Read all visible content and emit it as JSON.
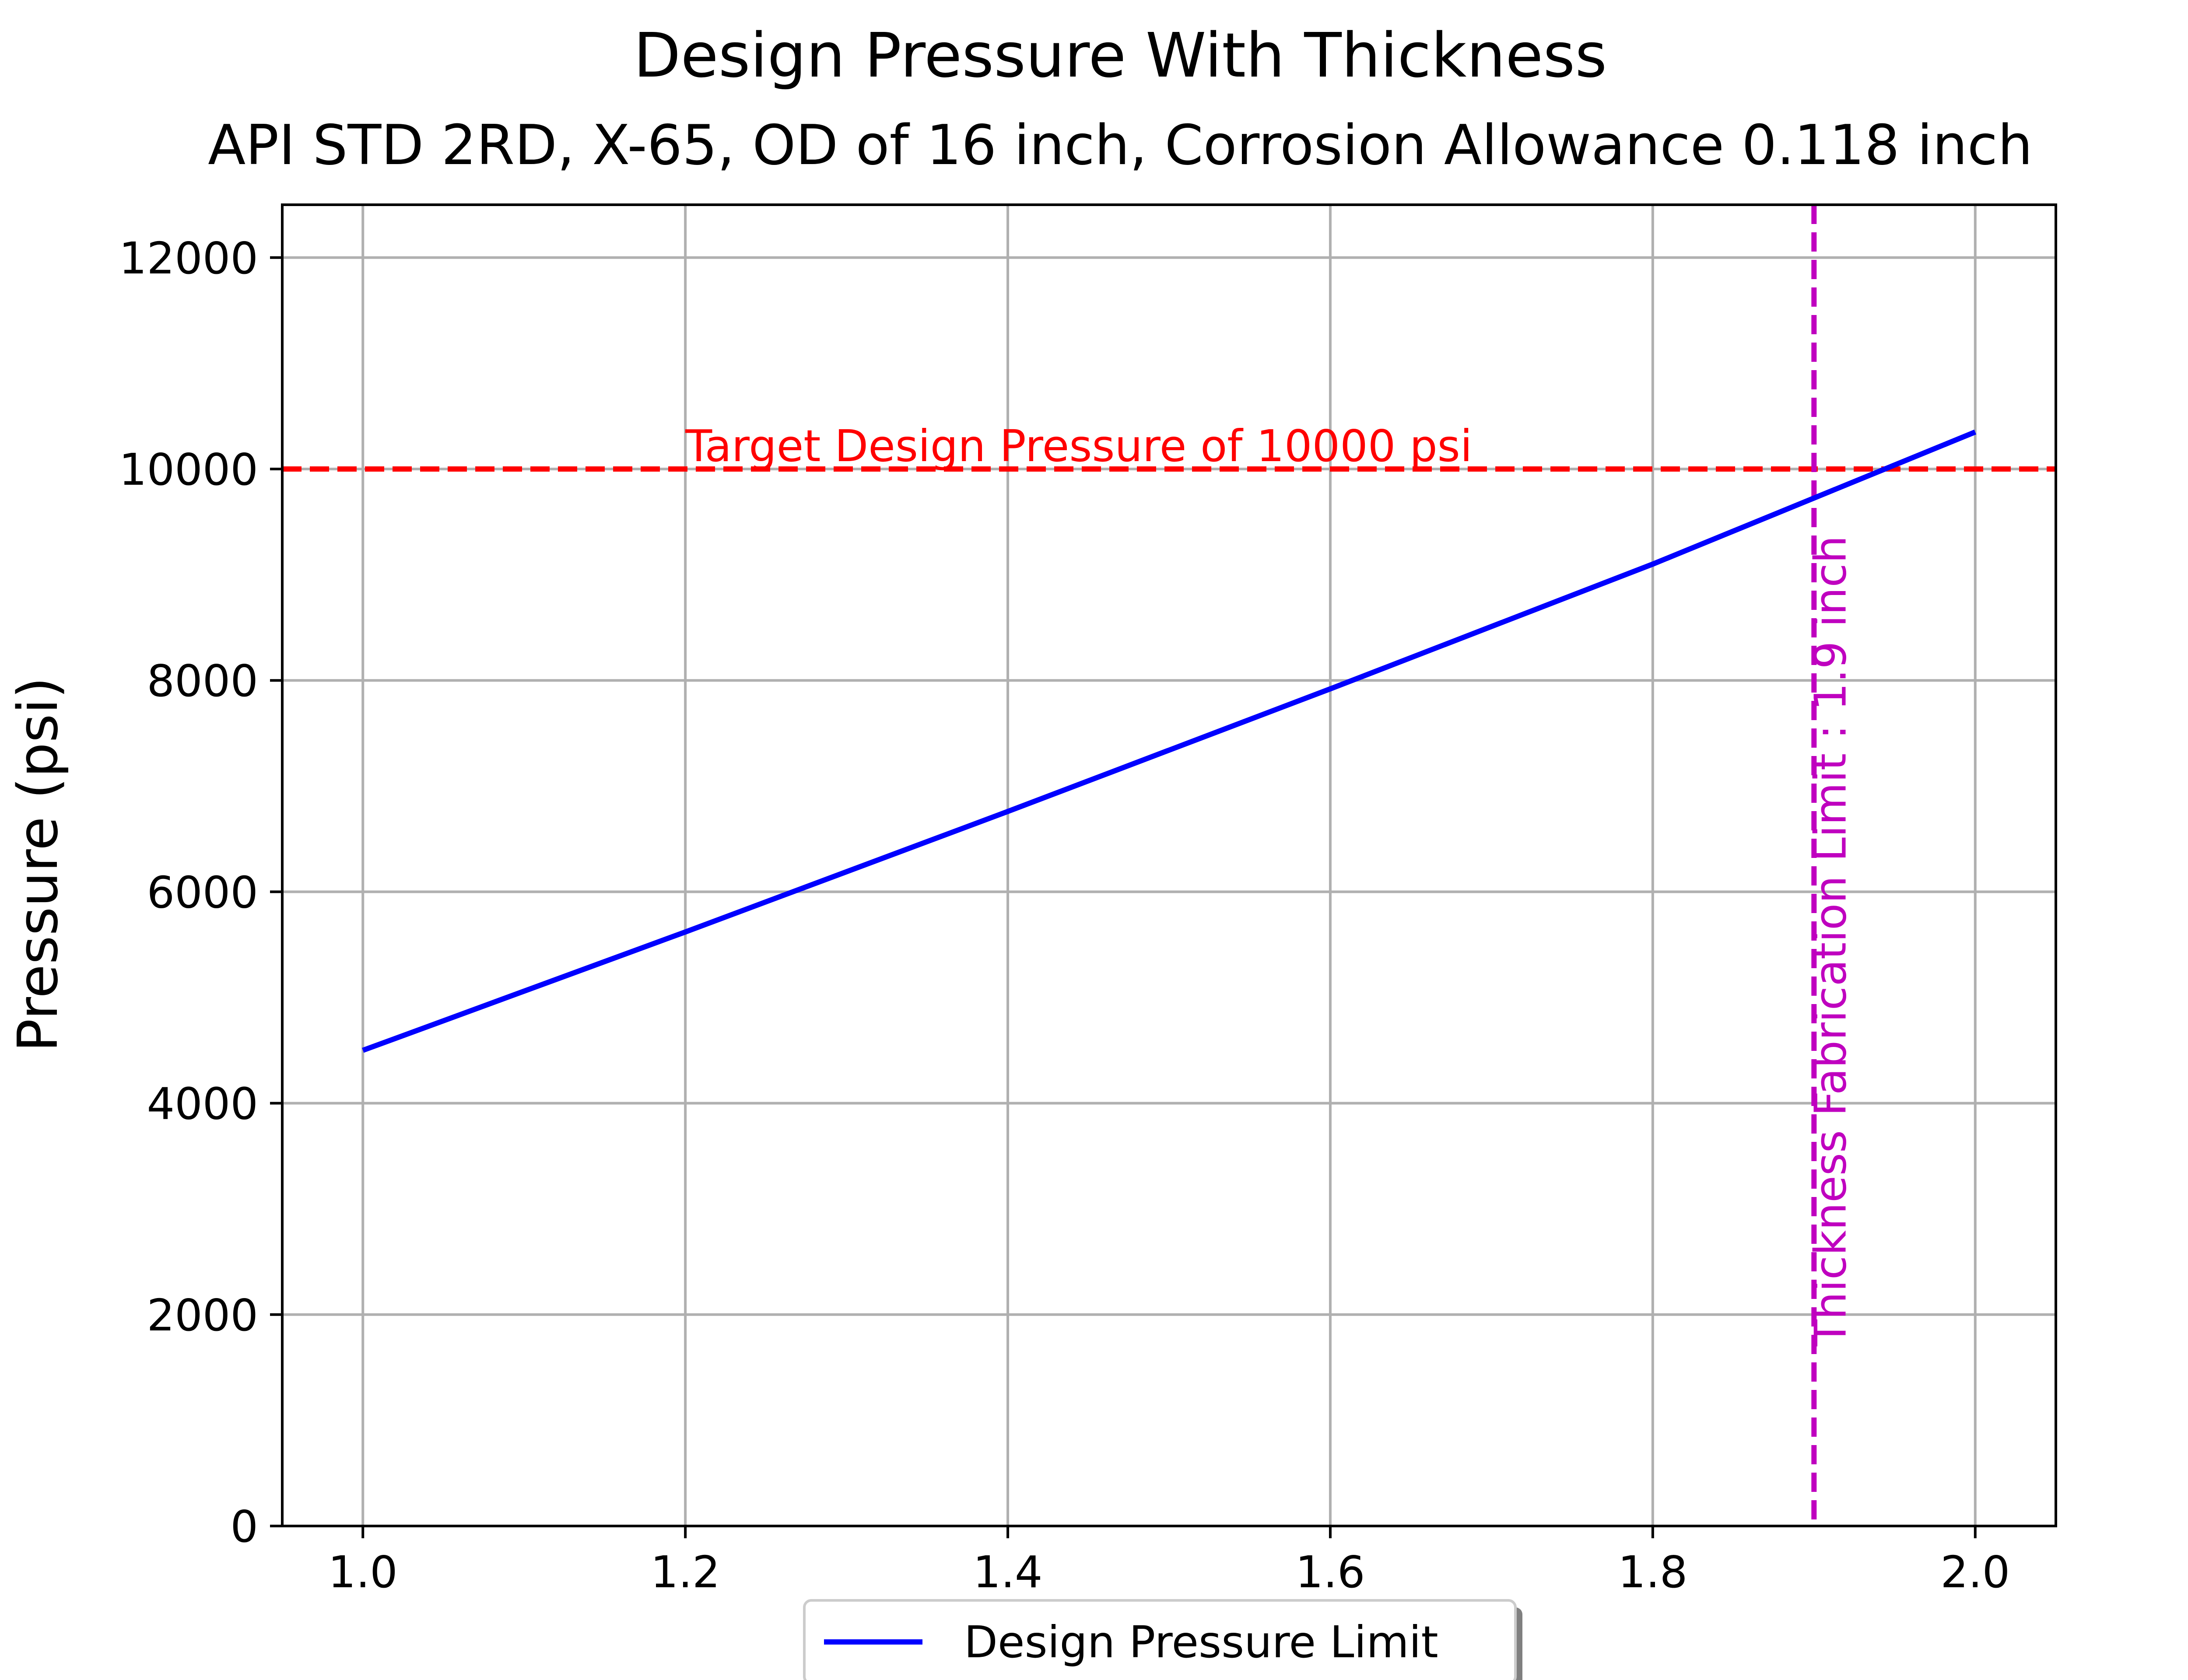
{
  "chart_data": {
    "type": "line",
    "title": "Design Pressure With Thickness",
    "subtitle": "API STD 2RD, X-65, OD of 16 inch, Corrosion Allowance 0.118 inch",
    "xlabel": "",
    "ylabel": "Pressure (psi)",
    "xlim": [
      0.95,
      2.05
    ],
    "ylim": [
      0,
      12500
    ],
    "x_ticks": [
      1.0,
      1.2,
      1.4,
      1.6,
      1.8,
      2.0
    ],
    "x_tick_labels": [
      "1.0",
      "1.2",
      "1.4",
      "1.6",
      "1.8",
      "2.0"
    ],
    "y_ticks": [
      0,
      2000,
      4000,
      6000,
      8000,
      10000,
      12000
    ],
    "y_tick_labels": [
      "0",
      "2000",
      "4000",
      "6000",
      "8000",
      "10000",
      "12000"
    ],
    "grid": true,
    "legend": {
      "placement": "below-center"
    },
    "series": [
      {
        "name": "Design Pressure Limit",
        "color": "#0000ff",
        "x": [
          1.0,
          1.2,
          1.4,
          1.6,
          1.8,
          2.0
        ],
        "y": [
          4500,
          5620,
          6760,
          7920,
          9100,
          10350
        ]
      }
    ],
    "reference_lines": [
      {
        "orientation": "horizontal",
        "value": 10000,
        "color": "#ff0000",
        "style": "dashed",
        "label": "Target Design Pressure of 10000 psi"
      },
      {
        "orientation": "vertical",
        "value": 1.9,
        "color": "#bf00bf",
        "style": "dashed",
        "label": "Thickness Fabrication Limit : 1.9 inch"
      }
    ]
  }
}
